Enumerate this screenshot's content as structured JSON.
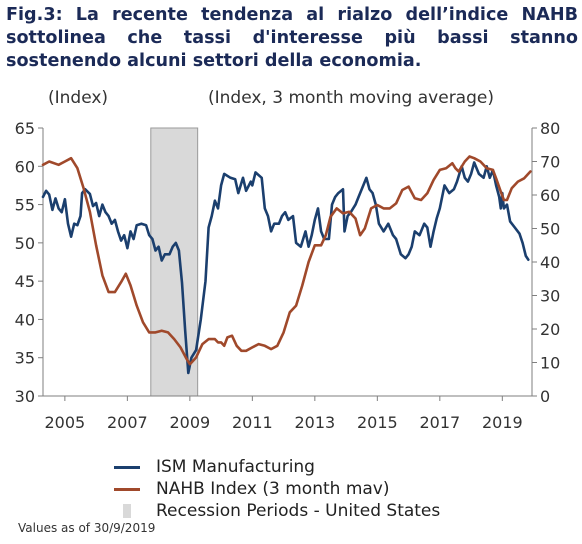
{
  "title_lines": [
    "Fig.3: La recente tendenza al rialzo dell’indice NAHB",
    "sottolinea che tassi d'interesse più bassi stanno",
    "sostenendo alcuni settori della economia."
  ],
  "note": "Values as of 30/9/2019",
  "colors": {
    "ism": "#1b3f6e",
    "nahb": "#a0492b",
    "recession": "#d9d9d9",
    "title": "#1b2a57"
  },
  "chart_data": {
    "type": "line",
    "left_axis": {
      "label": "(Index)",
      "range": [
        30,
        65
      ],
      "ticks": [
        30,
        35,
        40,
        45,
        50,
        55,
        60,
        65
      ]
    },
    "right_axis": {
      "label": "(Index, 3 month moving average)",
      "range": [
        0,
        80
      ],
      "ticks": [
        0,
        10,
        20,
        30,
        40,
        50,
        60,
        70,
        80
      ]
    },
    "x_axis": {
      "range": [
        2004.3,
        2019.95
      ],
      "tick_labels": [
        "2005",
        "2007",
        "2009",
        "2011",
        "2013",
        "2015",
        "2017",
        "2019"
      ]
    },
    "recession_periods": [
      [
        2007.75,
        2009.25
      ]
    ],
    "legend": [
      "ISM Manufacturing",
      "NAHB Index (3 month mav)",
      "Recession Periods - United States"
    ],
    "series": [
      {
        "name": "ISM Manufacturing",
        "axis": "left",
        "points": [
          [
            2004.3,
            56.0
          ],
          [
            2004.4,
            56.8
          ],
          [
            2004.5,
            56.3
          ],
          [
            2004.6,
            54.3
          ],
          [
            2004.7,
            55.8
          ],
          [
            2004.8,
            54.5
          ],
          [
            2004.9,
            54.0
          ],
          [
            2005.0,
            55.7
          ],
          [
            2005.1,
            52.5
          ],
          [
            2005.2,
            50.8
          ],
          [
            2005.3,
            52.5
          ],
          [
            2005.4,
            52.3
          ],
          [
            2005.5,
            53.5
          ],
          [
            2005.55,
            56.5
          ],
          [
            2005.65,
            57.0
          ],
          [
            2005.8,
            56.4
          ],
          [
            2005.9,
            54.8
          ],
          [
            2006.0,
            55.2
          ],
          [
            2006.1,
            53.5
          ],
          [
            2006.2,
            55.0
          ],
          [
            2006.3,
            54.0
          ],
          [
            2006.4,
            53.5
          ],
          [
            2006.5,
            52.5
          ],
          [
            2006.6,
            53.0
          ],
          [
            2006.7,
            51.5
          ],
          [
            2006.8,
            50.3
          ],
          [
            2006.9,
            51.0
          ],
          [
            2007.0,
            49.3
          ],
          [
            2007.1,
            51.5
          ],
          [
            2007.2,
            50.5
          ],
          [
            2007.3,
            52.3
          ],
          [
            2007.45,
            52.5
          ],
          [
            2007.6,
            52.3
          ],
          [
            2007.7,
            51.0
          ],
          [
            2007.8,
            50.5
          ],
          [
            2007.9,
            49.0
          ],
          [
            2008.0,
            49.5
          ],
          [
            2008.1,
            47.7
          ],
          [
            2008.2,
            48.5
          ],
          [
            2008.35,
            48.5
          ],
          [
            2008.45,
            49.5
          ],
          [
            2008.55,
            50.0
          ],
          [
            2008.65,
            49.0
          ],
          [
            2008.75,
            44.8
          ],
          [
            2008.85,
            38.5
          ],
          [
            2008.95,
            33.0
          ],
          [
            2009.05,
            35.0
          ],
          [
            2009.2,
            36.0
          ],
          [
            2009.35,
            40.0
          ],
          [
            2009.5,
            45.0
          ],
          [
            2009.6,
            52.0
          ],
          [
            2009.7,
            53.5
          ],
          [
            2009.8,
            55.5
          ],
          [
            2009.9,
            54.5
          ],
          [
            2010.0,
            57.5
          ],
          [
            2010.1,
            59.0
          ],
          [
            2010.3,
            58.5
          ],
          [
            2010.45,
            58.3
          ],
          [
            2010.55,
            56.5
          ],
          [
            2010.7,
            58.5
          ],
          [
            2010.8,
            56.8
          ],
          [
            2010.95,
            58.0
          ],
          [
            2011.0,
            57.5
          ],
          [
            2011.1,
            59.2
          ],
          [
            2011.3,
            58.5
          ],
          [
            2011.4,
            54.5
          ],
          [
            2011.5,
            53.5
          ],
          [
            2011.6,
            51.5
          ],
          [
            2011.7,
            52.5
          ],
          [
            2011.85,
            52.5
          ],
          [
            2011.95,
            53.5
          ],
          [
            2012.05,
            54.0
          ],
          [
            2012.15,
            53.0
          ],
          [
            2012.3,
            53.5
          ],
          [
            2012.4,
            50.0
          ],
          [
            2012.55,
            49.5
          ],
          [
            2012.7,
            51.5
          ],
          [
            2012.8,
            49.5
          ],
          [
            2012.9,
            51.0
          ],
          [
            2013.0,
            53.0
          ],
          [
            2013.1,
            54.5
          ],
          [
            2013.2,
            51.5
          ],
          [
            2013.3,
            50.5
          ],
          [
            2013.45,
            50.5
          ],
          [
            2013.55,
            55.0
          ],
          [
            2013.65,
            56.0
          ],
          [
            2013.75,
            56.5
          ],
          [
            2013.9,
            57.0
          ],
          [
            2013.95,
            51.5
          ],
          [
            2014.05,
            53.5
          ],
          [
            2014.15,
            54.0
          ],
          [
            2014.3,
            55.0
          ],
          [
            2014.4,
            56.0
          ],
          [
            2014.55,
            57.5
          ],
          [
            2014.65,
            58.5
          ],
          [
            2014.75,
            57.0
          ],
          [
            2014.85,
            56.5
          ],
          [
            2014.95,
            55.0
          ],
          [
            2015.05,
            52.5
          ],
          [
            2015.2,
            51.5
          ],
          [
            2015.35,
            52.5
          ],
          [
            2015.5,
            51.0
          ],
          [
            2015.6,
            50.5
          ],
          [
            2015.75,
            48.5
          ],
          [
            2015.9,
            48.0
          ],
          [
            2016.0,
            48.5
          ],
          [
            2016.1,
            49.5
          ],
          [
            2016.2,
            51.5
          ],
          [
            2016.35,
            51.0
          ],
          [
            2016.5,
            52.5
          ],
          [
            2016.6,
            52.0
          ],
          [
            2016.7,
            49.5
          ],
          [
            2016.8,
            51.5
          ],
          [
            2016.9,
            53.2
          ],
          [
            2017.0,
            54.5
          ],
          [
            2017.15,
            57.5
          ],
          [
            2017.3,
            56.5
          ],
          [
            2017.45,
            57.0
          ],
          [
            2017.55,
            58.0
          ],
          [
            2017.7,
            60.0
          ],
          [
            2017.8,
            58.5
          ],
          [
            2017.9,
            58.0
          ],
          [
            2018.0,
            59.0
          ],
          [
            2018.1,
            60.5
          ],
          [
            2018.25,
            59.0
          ],
          [
            2018.4,
            58.5
          ],
          [
            2018.5,
            60.0
          ],
          [
            2018.6,
            58.5
          ],
          [
            2018.7,
            59.5
          ],
          [
            2018.8,
            57.5
          ],
          [
            2018.9,
            56.0
          ],
          [
            2018.95,
            54.5
          ],
          [
            2019.0,
            56.5
          ],
          [
            2019.05,
            54.5
          ],
          [
            2019.15,
            55.0
          ],
          [
            2019.25,
            52.8
          ],
          [
            2019.4,
            52.0
          ],
          [
            2019.55,
            51.2
          ],
          [
            2019.65,
            50.0
          ],
          [
            2019.75,
            48.3
          ],
          [
            2019.83,
            47.8
          ]
        ]
      },
      {
        "name": "NAHB Index (3 month mav)",
        "axis": "right",
        "points": [
          [
            2004.3,
            69.0
          ],
          [
            2004.5,
            70.0
          ],
          [
            2004.8,
            69.0
          ],
          [
            2005.0,
            70.0
          ],
          [
            2005.2,
            71.0
          ],
          [
            2005.4,
            68.0
          ],
          [
            2005.6,
            62.0
          ],
          [
            2005.8,
            55.0
          ],
          [
            2006.0,
            45.0
          ],
          [
            2006.2,
            36.0
          ],
          [
            2006.4,
            31.0
          ],
          [
            2006.6,
            31.0
          ],
          [
            2006.8,
            34.0
          ],
          [
            2006.95,
            36.5
          ],
          [
            2007.1,
            33.0
          ],
          [
            2007.3,
            27.0
          ],
          [
            2007.5,
            22.0
          ],
          [
            2007.7,
            19.0
          ],
          [
            2007.9,
            19.0
          ],
          [
            2008.1,
            19.5
          ],
          [
            2008.3,
            19.0
          ],
          [
            2008.5,
            17.0
          ],
          [
            2008.7,
            14.5
          ],
          [
            2008.9,
            11.0
          ],
          [
            2009.0,
            9.5
          ],
          [
            2009.2,
            11.5
          ],
          [
            2009.4,
            15.5
          ],
          [
            2009.6,
            17.0
          ],
          [
            2009.8,
            17.0
          ],
          [
            2009.9,
            16.0
          ],
          [
            2010.0,
            16.0
          ],
          [
            2010.1,
            15.0
          ],
          [
            2010.2,
            17.5
          ],
          [
            2010.35,
            18.0
          ],
          [
            2010.5,
            15.0
          ],
          [
            2010.65,
            13.5
          ],
          [
            2010.8,
            13.5
          ],
          [
            2011.0,
            14.5
          ],
          [
            2011.2,
            15.5
          ],
          [
            2011.4,
            15.0
          ],
          [
            2011.6,
            14.0
          ],
          [
            2011.8,
            15.0
          ],
          [
            2012.0,
            19.0
          ],
          [
            2012.2,
            25.0
          ],
          [
            2012.4,
            27.0
          ],
          [
            2012.6,
            33.0
          ],
          [
            2012.8,
            40.0
          ],
          [
            2013.0,
            45.0
          ],
          [
            2013.2,
            45.0
          ],
          [
            2013.35,
            48.0
          ],
          [
            2013.5,
            53.5
          ],
          [
            2013.7,
            56.0
          ],
          [
            2013.9,
            54.5
          ],
          [
            2014.1,
            55.0
          ],
          [
            2014.3,
            53.0
          ],
          [
            2014.45,
            48.0
          ],
          [
            2014.6,
            50.0
          ],
          [
            2014.8,
            56.0
          ],
          [
            2015.0,
            57.0
          ],
          [
            2015.2,
            56.0
          ],
          [
            2015.4,
            56.0
          ],
          [
            2015.6,
            57.5
          ],
          [
            2015.8,
            61.5
          ],
          [
            2016.0,
            62.5
          ],
          [
            2016.2,
            59.0
          ],
          [
            2016.4,
            58.5
          ],
          [
            2016.6,
            60.5
          ],
          [
            2016.8,
            64.5
          ],
          [
            2017.0,
            67.5
          ],
          [
            2017.2,
            68.0
          ],
          [
            2017.4,
            69.5
          ],
          [
            2017.5,
            68.0
          ],
          [
            2017.6,
            67.0
          ],
          [
            2017.8,
            70.0
          ],
          [
            2017.95,
            71.5
          ],
          [
            2018.1,
            71.0
          ],
          [
            2018.3,
            70.0
          ],
          [
            2018.5,
            68.0
          ],
          [
            2018.7,
            67.5
          ],
          [
            2018.8,
            65.0
          ],
          [
            2018.95,
            61.0
          ],
          [
            2019.05,
            58.5
          ],
          [
            2019.15,
            58.5
          ],
          [
            2019.3,
            62.0
          ],
          [
            2019.5,
            64.0
          ],
          [
            2019.7,
            65.0
          ],
          [
            2019.9,
            67.0
          ]
        ]
      }
    ]
  }
}
